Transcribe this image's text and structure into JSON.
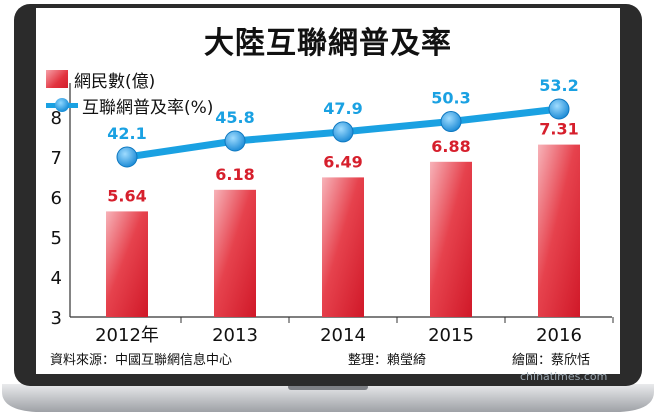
{
  "title": "大陸互聯網普及率",
  "legend": {
    "bar_label": "網民數(億)",
    "line_label": "互聯網普及率(%)"
  },
  "footer": {
    "source": "資料來源：中國互聯網信息中心",
    "editor": "整理：賴瑩綺",
    "artist": "繪圖：蔡欣恬"
  },
  "watermark": "chinatimes.com",
  "colors": {
    "bar": "#e2333f",
    "bar_label": "#d61f2c",
    "line": "#1aa1e2",
    "line_label": "#1aa1e2",
    "frame": "#2b2b2b"
  },
  "chart_data": {
    "type": "bar",
    "categories": [
      "2012年",
      "2013",
      "2014",
      "2015",
      "2016"
    ],
    "series": [
      {
        "name": "網民數(億)",
        "type": "bar",
        "values": [
          5.64,
          6.18,
          6.49,
          6.88,
          7.31
        ],
        "labels": [
          "5.64",
          "6.18",
          "6.49",
          "6.88",
          "7.31"
        ]
      },
      {
        "name": "互聯網普及率(%)",
        "type": "line",
        "values": [
          42.1,
          45.8,
          47.9,
          50.3,
          53.2
        ],
        "labels": [
          "42.1",
          "45.8",
          "47.9",
          "50.3",
          "53.2"
        ]
      }
    ],
    "yticks": [
      "3",
      "4",
      "5",
      "6",
      "7",
      "8"
    ],
    "ylim": [
      3,
      8.7
    ],
    "grid": false
  }
}
